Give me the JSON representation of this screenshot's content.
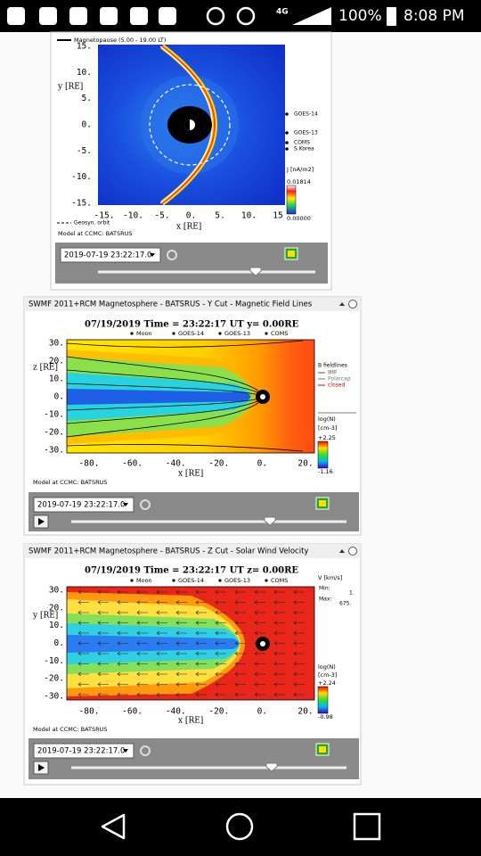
{
  "status_bar": {
    "network": "4G",
    "battery": "100%",
    "time": "8:08 PM"
  },
  "panels": [
    {
      "plot_title": "Magnetopause (5.00 - 19.00 LT)",
      "y_label": "y [RE]",
      "x_label": "x [RE]",
      "y_ticks": [
        "15.",
        "10.",
        "5.",
        "0.",
        "-5.",
        "-10.",
        "-15."
      ],
      "x_ticks": [
        "-15.",
        "-10.",
        "-5.",
        "0.",
        "5.",
        "10.",
        "15"
      ],
      "legend": [
        "GOES-14",
        "GOES-13",
        "COMS",
        "S.Korea"
      ],
      "colorbar_label": "J [nA/m2]",
      "colorbar_max": "0.01814",
      "colorbar_min": "0.00000",
      "orbit_label": "Geosyn. orbit",
      "model_note": "Model at CCMC: BATSRUS",
      "timestamp": "2019-07-19 23:22:17.0"
    },
    {
      "window_title": "SWMF 2011+RCM Magnetosphere - BATSRUS - Y Cut - Magnetic Field Lines",
      "plot_title": "07/19/2019 Time = 23:22:17 UT y= 0.00RE",
      "legend": [
        "Moon",
        "GOES-14",
        "GOES-13",
        "COMS"
      ],
      "y_label": "z [RE]",
      "x_label": "x [RE]",
      "y_ticks": [
        "30.",
        "20.",
        "10.",
        "0.",
        "-10.",
        "-20.",
        "-30."
      ],
      "x_ticks": [
        "-80.",
        "-60.",
        "-40.",
        "-20.",
        "0.",
        "20."
      ],
      "field_legend": [
        "B fieldlines",
        "IMF",
        "Polarcap",
        "closed"
      ],
      "colorbar_label": "log(N)",
      "colorbar_unit": "[cm-3]",
      "colorbar_max": "+2.25",
      "colorbar_min": "-1.16",
      "model_note": "Model at CCMC: BATSRUS",
      "timestamp": "2019-07-19 23:22:17.0"
    },
    {
      "window_title": "SWMF 2011+RCM Magnetosphere - BATSRUS - Z Cut - Solar Wind Velocity",
      "plot_title": "07/19/2019 Time = 23:22:17 UT z= 0.00RE",
      "legend": [
        "Moon",
        "GOES-14",
        "GOES-13",
        "COMS"
      ],
      "y_label": "y [RE]",
      "x_label": "x [RE]",
      "y_ticks": [
        "30.",
        "20.",
        "10.",
        "0.",
        "-10.",
        "-20.",
        "-30."
      ],
      "x_ticks": [
        "-80.",
        "-60.",
        "-40.",
        "-20.",
        "0.",
        "20."
      ],
      "velocity_label": "V [km/s]",
      "min_label": "Min:",
      "min_value": "1.",
      "max_label": "Max:",
      "max_value": "675.",
      "colorbar_label": "log(N)",
      "colorbar_unit": "[cm-3]",
      "colorbar_max": "+2.24",
      "colorbar_min": "-0.98",
      "model_note": "Model at CCMC: BATSRUS",
      "timestamp": "2019-07-19 23:22:17.0"
    }
  ]
}
